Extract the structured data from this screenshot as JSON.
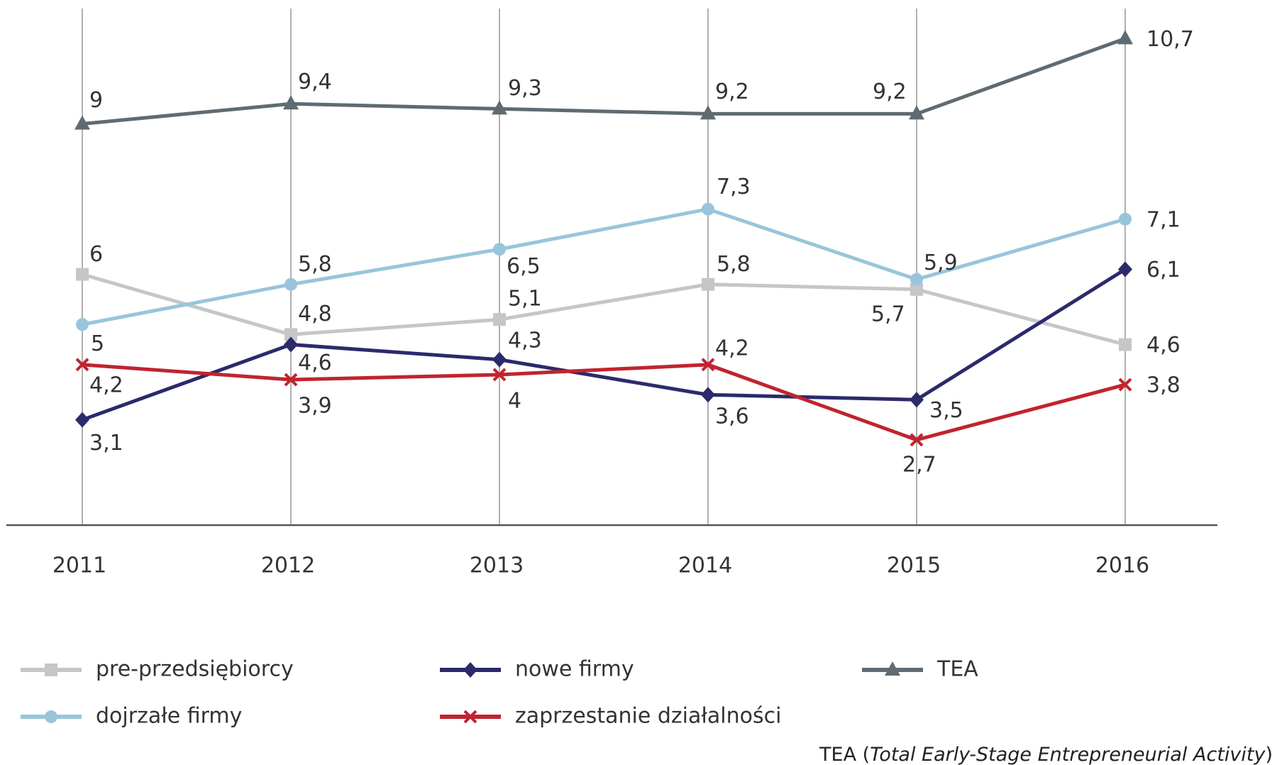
{
  "chart_data": {
    "type": "line",
    "categories": [
      "2011",
      "2012",
      "2013",
      "2014",
      "2015",
      "2016"
    ],
    "ylim": [
      1,
      11.3
    ],
    "legend": "bottom",
    "series": [
      {
        "name": "pre-przedsiębiorcy",
        "color": "#c4c6c8",
        "marker": "square",
        "values": [
          6,
          4.8,
          5.1,
          5.8,
          5.7,
          4.6
        ],
        "value_labels": [
          "6",
          "4,8",
          "5,1",
          "5,8",
          "5,7",
          "4,6"
        ]
      },
      {
        "name": "nowe firmy",
        "color": "#2b2a6b",
        "marker": "diamond",
        "values": [
          3.1,
          4.6,
          4.3,
          3.6,
          3.5,
          6.1
        ],
        "value_labels": [
          "3,1",
          "4,6",
          "4,3",
          "3,6",
          "3,5",
          "6,1"
        ]
      },
      {
        "name": "TEA",
        "color": "#5f6b72",
        "marker": "triangle",
        "values": [
          9,
          9.4,
          9.3,
          9.2,
          9.2,
          10.7
        ],
        "value_labels": [
          "9",
          "9,4",
          "9,3",
          "9,2",
          "9,2",
          "10,7"
        ]
      },
      {
        "name": "dojrzałe firmy",
        "color": "#98c5dc",
        "marker": "circle",
        "values": [
          5,
          5.8,
          6.5,
          7.3,
          5.9,
          7.1
        ],
        "value_labels": [
          "5",
          "5,8",
          "6,5",
          "7,3",
          "5,9",
          "7,1"
        ]
      },
      {
        "name": "zaprzestanie działalności",
        "color": "#c0242f",
        "marker": "x",
        "values": [
          4.2,
          3.9,
          4,
          4.2,
          2.7,
          3.8
        ],
        "value_labels": [
          "4,2",
          "3,9",
          "4",
          "4,2",
          "2,7",
          "3,8"
        ]
      }
    ],
    "footnote": [
      "TEA (",
      "Total Early-Stage Entrepreneurial Activity",
      ")"
    ]
  }
}
